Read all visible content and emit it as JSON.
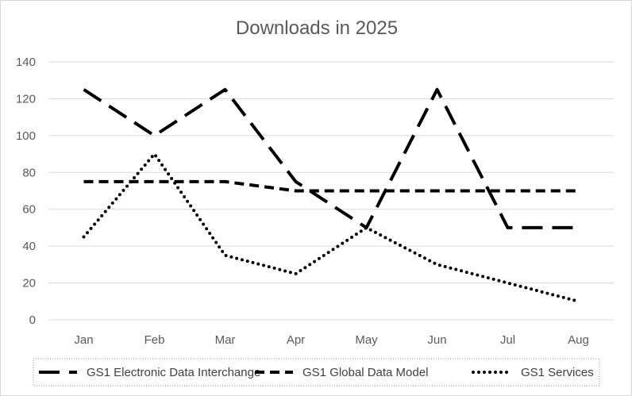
{
  "chart_data": {
    "type": "line",
    "title": "Downloads in 2025",
    "categories": [
      "Jan",
      "Feb",
      "Mar",
      "Apr",
      "May",
      "Jun",
      "Jul",
      "Aug"
    ],
    "ylim": [
      0,
      140
    ],
    "yticks": [
      0,
      20,
      40,
      60,
      80,
      100,
      120,
      140
    ],
    "grid": true,
    "legend_position": "bottom",
    "series": [
      {
        "name": "GS1 Electronic Data Interchange",
        "style": "long-dash",
        "color": "#000000",
        "values": [
          125,
          100,
          125,
          75,
          50,
          125,
          50,
          50
        ]
      },
      {
        "name": "GS1 Global Data Model",
        "style": "dash",
        "color": "#000000",
        "values": [
          75,
          75,
          75,
          70,
          70,
          70,
          70,
          70
        ]
      },
      {
        "name": "GS1 Services",
        "style": "dot",
        "color": "#000000",
        "values": [
          45,
          90,
          35,
          25,
          50,
          30,
          20,
          10
        ]
      }
    ]
  }
}
